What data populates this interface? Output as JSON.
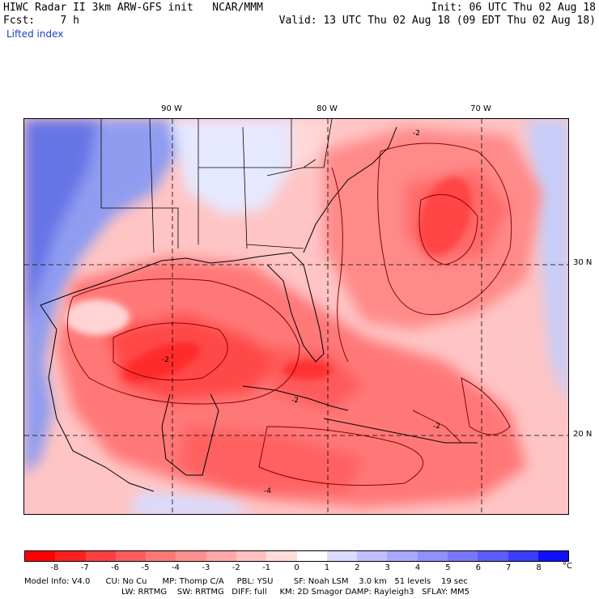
{
  "header": {
    "left_line1": "HIWC Radar II 3km ARW-GFS init   NCAR/MMM",
    "left_line2": "Fcst:    7 h",
    "right_line1": "Init: 06 UTC Thu 02 Aug 18",
    "right_line2": "Valid: 13 UTC Thu 02 Aug 18 (09 EDT Thu 02 Aug 18)",
    "field": "Lifted index"
  },
  "axes": {
    "lon_labels": [
      "90 W",
      "80 W",
      "70 W"
    ],
    "lat_labels": [
      "30 N",
      "20 N"
    ]
  },
  "contour_labels": [
    "-2",
    "-2",
    "-2",
    "-2",
    "-4"
  ],
  "colorbar": {
    "unit": "°C",
    "labels": [
      "-8",
      "-7",
      "-6",
      "-5",
      "-4",
      "-3",
      "-2",
      "-1",
      "0",
      "1",
      "2",
      "3",
      "4",
      "5",
      "6",
      "7",
      "8"
    ],
    "colors": [
      "#ff0000",
      "#ff2020",
      "#ff4040",
      "#ff5c5c",
      "#ff7878",
      "#ff9090",
      "#ffa8a8",
      "#ffc0c0",
      "#ffdcdc",
      "#ffffff",
      "#dcdcff",
      "#c0c0ff",
      "#a8a8ff",
      "#9090ff",
      "#7878ff",
      "#5c5cff",
      "#3c3cff",
      "#1010ff"
    ]
  },
  "footer": {
    "line1": "Model Info: V4.0      CU: No Cu      MP: Thomp C/A     PBL: YSU        SF: Noah LSM    3.0 km   51 levels    19 sec",
    "line2": "LW: RRTMG    SW: RRTMG   DIFF: full     KM: 2D Smagor DAMP: Rayleigh3   SFLAY: MM5"
  }
}
